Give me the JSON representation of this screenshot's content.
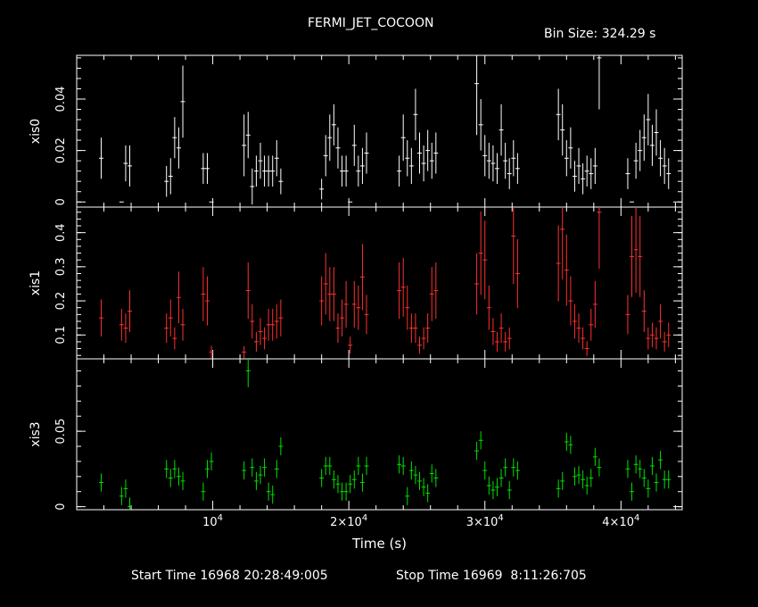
{
  "title": "FERMI_JET_COCOON",
  "bin_label": "Bin Size: 324.29 s",
  "start_time": "Start Time 16968 20:28:49:005",
  "stop_time": "Stop Time 16969  8:11:26:705",
  "chart_data": [
    {
      "type": "scatter",
      "ylabel": "xis0",
      "color": "#ffffff",
      "ylim": [
        -0.002,
        0.057
      ],
      "yticks": [
        0,
        0.02,
        0.04
      ],
      "ytick_labels": [
        "0",
        "0.02",
        "0.04"
      ],
      "x": [
        1800,
        3300,
        3600,
        3900,
        6600,
        6900,
        7200,
        7500,
        7800,
        9300,
        9600,
        9900,
        12300,
        12600,
        12900,
        13200,
        13500,
        13800,
        14100,
        14400,
        14700,
        15000,
        18000,
        18300,
        18600,
        18900,
        19200,
        19500,
        19800,
        20100,
        20400,
        20700,
        21000,
        21300,
        23700,
        24000,
        24300,
        24600,
        24900,
        25200,
        25500,
        25800,
        26100,
        26400,
        29400,
        29700,
        30000,
        30300,
        30600,
        30900,
        31200,
        31500,
        31800,
        32100,
        32400,
        35400,
        35700,
        36000,
        36300,
        36600,
        36900,
        37200,
        37500,
        37800,
        38100,
        38400,
        40500,
        40800,
        41100,
        41400,
        41700,
        42000,
        42300,
        42600,
        42900,
        43200,
        43500
      ],
      "y": [
        0.017,
        0.0,
        0.015,
        0.014,
        0.008,
        0.01,
        0.025,
        0.021,
        0.039,
        0.013,
        0.013,
        0.0,
        0.022,
        0.026,
        0.006,
        0.012,
        0.016,
        0.012,
        0.012,
        0.012,
        0.017,
        0.008,
        0.005,
        0.018,
        0.025,
        0.03,
        0.021,
        0.012,
        0.012,
        0.0,
        0.022,
        0.012,
        0.014,
        0.019,
        0.012,
        0.025,
        0.017,
        0.014,
        0.034,
        0.019,
        0.015,
        0.02,
        0.016,
        0.019,
        0.046,
        0.03,
        0.018,
        0.016,
        0.015,
        0.013,
        0.028,
        0.016,
        0.011,
        0.017,
        0.013,
        0.034,
        0.028,
        0.017,
        0.021,
        0.01,
        0.014,
        0.009,
        0.012,
        0.011,
        0.014,
        0.056,
        0.011,
        0.0,
        0.016,
        0.02,
        0.025,
        0.032,
        0.022,
        0.027,
        0.017,
        0.014,
        0.011
      ],
      "yerr": [
        0.008,
        0.0,
        0.007,
        0.008,
        0.006,
        0.007,
        0.008,
        0.008,
        0.014,
        0.006,
        0.006,
        0.0,
        0.012,
        0.009,
        0.007,
        0.006,
        0.007,
        0.006,
        0.006,
        0.006,
        0.007,
        0.005,
        0.004,
        0.008,
        0.009,
        0.008,
        0.008,
        0.006,
        0.006,
        0.0,
        0.008,
        0.006,
        0.007,
        0.008,
        0.006,
        0.009,
        0.007,
        0.007,
        0.01,
        0.008,
        0.007,
        0.008,
        0.007,
        0.008,
        0.02,
        0.01,
        0.008,
        0.007,
        0.007,
        0.006,
        0.01,
        0.007,
        0.006,
        0.007,
        0.006,
        0.01,
        0.01,
        0.007,
        0.008,
        0.006,
        0.007,
        0.006,
        0.006,
        0.006,
        0.007,
        0.02,
        0.006,
        0.0,
        0.007,
        0.008,
        0.009,
        0.01,
        0.008,
        0.009,
        0.007,
        0.007,
        0.006
      ]
    },
    {
      "type": "scatter",
      "ylabel": "xis1",
      "color": "#ff3030",
      "ylim": [
        0.03,
        0.475
      ],
      "yticks": [
        0.1,
        0.2,
        0.3,
        0.4
      ],
      "ytick_labels": [
        "0.1",
        "0.2",
        "0.3",
        "0.4"
      ],
      "x": [
        1800,
        3300,
        3600,
        3900,
        6600,
        6900,
        7200,
        7500,
        7800,
        9300,
        9600,
        9900,
        12300,
        12600,
        12900,
        13200,
        13500,
        13800,
        14100,
        14400,
        14700,
        15000,
        18000,
        18300,
        18600,
        18900,
        19200,
        19500,
        19800,
        20100,
        20400,
        20700,
        21000,
        21300,
        23700,
        24000,
        24300,
        24600,
        24900,
        25200,
        25500,
        25800,
        26100,
        26400,
        29400,
        29700,
        30000,
        30300,
        30600,
        30900,
        31200,
        31500,
        31800,
        32100,
        32400,
        35400,
        35700,
        36000,
        36300,
        36600,
        36900,
        37200,
        37500,
        37800,
        38100,
        38400,
        40500,
        40800,
        41100,
        41400,
        41700,
        42000,
        42300,
        42600,
        42900,
        43200,
        43500
      ],
      "y": [
        0.15,
        0.13,
        0.12,
        0.17,
        0.12,
        0.15,
        0.09,
        0.21,
        0.13,
        0.22,
        0.2,
        0.05,
        0.05,
        0.23,
        0.14,
        0.08,
        0.11,
        0.09,
        0.13,
        0.13,
        0.14,
        0.15,
        0.2,
        0.25,
        0.22,
        0.22,
        0.12,
        0.15,
        0.19,
        0.07,
        0.19,
        0.18,
        0.27,
        0.16,
        0.23,
        0.24,
        0.18,
        0.12,
        0.12,
        0.07,
        0.09,
        0.12,
        0.22,
        0.23,
        0.25,
        0.34,
        0.32,
        0.18,
        0.11,
        0.08,
        0.12,
        0.08,
        0.09,
        0.39,
        0.28,
        0.31,
        0.41,
        0.29,
        0.2,
        0.14,
        0.12,
        0.09,
        0.06,
        0.13,
        0.19,
        0.46,
        0.16,
        0.33,
        0.35,
        0.33,
        0.17,
        0.09,
        0.1,
        0.09,
        0.14,
        0.08,
        0.1
      ]
    },
    {
      "type": "scatter",
      "ylabel": "xis3",
      "color": "#00e000",
      "ylim": [
        -0.002,
        0.098
      ],
      "yticks": [
        0,
        0.05
      ],
      "ytick_labels": [
        "0",
        "0.05"
      ],
      "x": [
        1800,
        3300,
        3600,
        3900,
        6600,
        6900,
        7200,
        7500,
        7800,
        9300,
        9600,
        9900,
        12300,
        12600,
        12900,
        13200,
        13500,
        13800,
        14100,
        14400,
        14700,
        15000,
        18000,
        18300,
        18600,
        18900,
        19200,
        19500,
        19800,
        20100,
        20400,
        20700,
        21000,
        21300,
        23700,
        24000,
        24300,
        24600,
        24900,
        25200,
        25500,
        25800,
        26100,
        26400,
        29400,
        29700,
        30000,
        30300,
        30600,
        30900,
        31200,
        31500,
        31800,
        32100,
        32400,
        35400,
        35700,
        36000,
        36300,
        36600,
        36900,
        37200,
        37500,
        37800,
        38100,
        38400,
        40500,
        40800,
        41100,
        41400,
        41700,
        42000,
        42300,
        42600,
        42900,
        43200,
        43500
      ],
      "y": [
        0.016,
        0.007,
        0.012,
        0.0,
        0.025,
        0.019,
        0.025,
        0.02,
        0.017,
        0.01,
        0.025,
        0.03,
        0.024,
        0.09,
        0.026,
        0.017,
        0.021,
        0.026,
        0.01,
        0.008,
        0.025,
        0.04,
        0.019,
        0.027,
        0.027,
        0.018,
        0.015,
        0.01,
        0.01,
        0.015,
        0.018,
        0.027,
        0.016,
        0.027,
        0.028,
        0.027,
        0.007,
        0.024,
        0.021,
        0.017,
        0.013,
        0.009,
        0.022,
        0.019,
        0.037,
        0.044,
        0.024,
        0.014,
        0.011,
        0.013,
        0.019,
        0.026,
        0.011,
        0.026,
        0.024,
        0.012,
        0.017,
        0.043,
        0.041,
        0.02,
        0.021,
        0.018,
        0.014,
        0.019,
        0.033,
        0.026,
        0.025,
        0.01,
        0.028,
        0.025,
        0.019,
        0.012,
        0.027,
        0.016,
        0.031,
        0.018,
        0.018
      ]
    }
  ],
  "x_axis": {
    "label": "Time (s)",
    "xlim": [
      0,
      44500
    ],
    "ticks": [
      10000,
      20000,
      30000,
      40000
    ],
    "tick_labels": [
      {
        "mant": "",
        "base": "10",
        "exp": "4"
      },
      {
        "mant": "2×",
        "base": "10",
        "exp": "4"
      },
      {
        "mant": "3×",
        "base": "10",
        "exp": "4"
      },
      {
        "mant": "4×",
        "base": "10",
        "exp": "4"
      }
    ]
  }
}
